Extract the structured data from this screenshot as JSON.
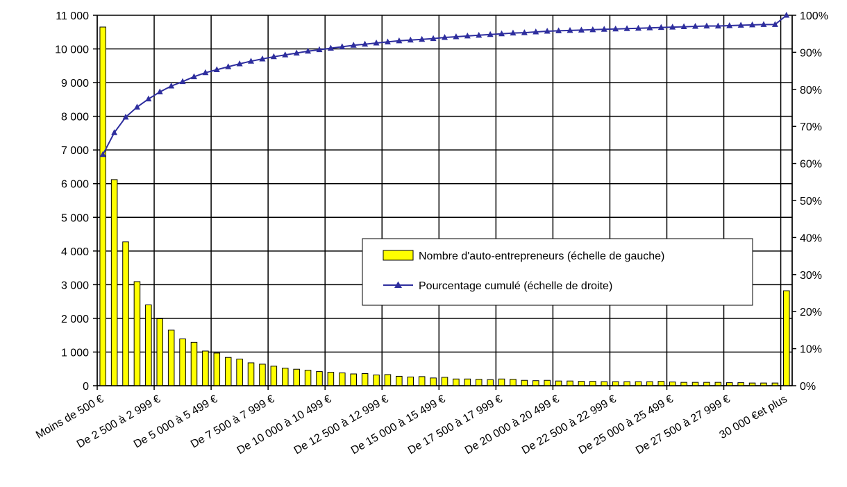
{
  "chart_data": {
    "type": "bar",
    "combo": "bar-with-cumulative-line",
    "grid": true,
    "legend_position": "center-right",
    "colors": {
      "bar_fill": "#ffff00",
      "bar_stroke": "#000000",
      "line": "#2e2e9e",
      "grid": "#000000"
    },
    "y_left": {
      "min": 0,
      "max": 11000,
      "step": 1000,
      "tick_labels": [
        "0",
        "1 000",
        "2 000",
        "3 000",
        "4 000",
        "5 000",
        "6 000",
        "7 000",
        "8 000",
        "9 000",
        "10 000",
        "11 000"
      ]
    },
    "y_right": {
      "min": 0,
      "max": 100,
      "step": 10,
      "tick_labels": [
        "0%",
        "10%",
        "20%",
        "30%",
        "40%",
        "50%",
        "60%",
        "70%",
        "80%",
        "90%",
        "100%"
      ]
    },
    "x_tick_labels": [
      {
        "index": 0,
        "text": "Moins de 500 €"
      },
      {
        "index": 5,
        "text": "De 2 500 à 2 999 €"
      },
      {
        "index": 10,
        "text": "De 5 000 à 5 499 €"
      },
      {
        "index": 15,
        "text": "De 7 500 à 7 999 €"
      },
      {
        "index": 20,
        "text": "De 10 000 à 10 499 €"
      },
      {
        "index": 25,
        "text": "De 12 500 à 12 999 €"
      },
      {
        "index": 30,
        "text": "De 15 000 à 15 499 €"
      },
      {
        "index": 35,
        "text": "De 17 500 à 17 999 €"
      },
      {
        "index": 40,
        "text": "De 20 000 à 20 499 €"
      },
      {
        "index": 45,
        "text": "De 22 500 à 22 999 €"
      },
      {
        "index": 50,
        "text": "De 25 000 à 25 499 €"
      },
      {
        "index": 55,
        "text": "De 27 500 à 27 999 €"
      },
      {
        "index": 60,
        "text": "30 000 €et plus"
      }
    ],
    "series": [
      {
        "name": "Nombre d'auto-entrepreneurs (échelle de gauche)",
        "kind": "bar",
        "axis": "left",
        "values": [
          10650,
          6120,
          4270,
          3090,
          2400,
          1990,
          1650,
          1390,
          1290,
          1030,
          970,
          840,
          790,
          680,
          640,
          580,
          520,
          490,
          460,
          420,
          400,
          380,
          350,
          360,
          320,
          330,
          280,
          260,
          270,
          230,
          250,
          200,
          200,
          190,
          180,
          200,
          190,
          160,
          150,
          160,
          140,
          140,
          130,
          130,
          120,
          120,
          120,
          120,
          120,
          130,
          110,
          100,
          100,
          100,
          100,
          90,
          90,
          80,
          80,
          80,
          2820
        ]
      },
      {
        "name": "Pourcentage cumulé (échelle de droite)",
        "kind": "line",
        "axis": "right",
        "marker": "triangle",
        "values": [
          62.4,
          68.3,
          72.5,
          75.2,
          77.4,
          79.3,
          80.9,
          82.1,
          83.4,
          84.5,
          85.3,
          86.1,
          86.9,
          87.6,
          88.2,
          88.8,
          89.3,
          89.8,
          90.3,
          90.7,
          91.1,
          91.5,
          91.9,
          92.2,
          92.5,
          92.8,
          93.1,
          93.3,
          93.5,
          93.7,
          94.0,
          94.2,
          94.4,
          94.6,
          94.8,
          95.0,
          95.2,
          95.3,
          95.5,
          95.7,
          95.8,
          95.9,
          96.0,
          96.1,
          96.2,
          96.3,
          96.4,
          96.5,
          96.6,
          96.7,
          96.8,
          96.9,
          97.0,
          97.1,
          97.1,
          97.2,
          97.3,
          97.4,
          97.5,
          97.5,
          100
        ]
      }
    ]
  }
}
